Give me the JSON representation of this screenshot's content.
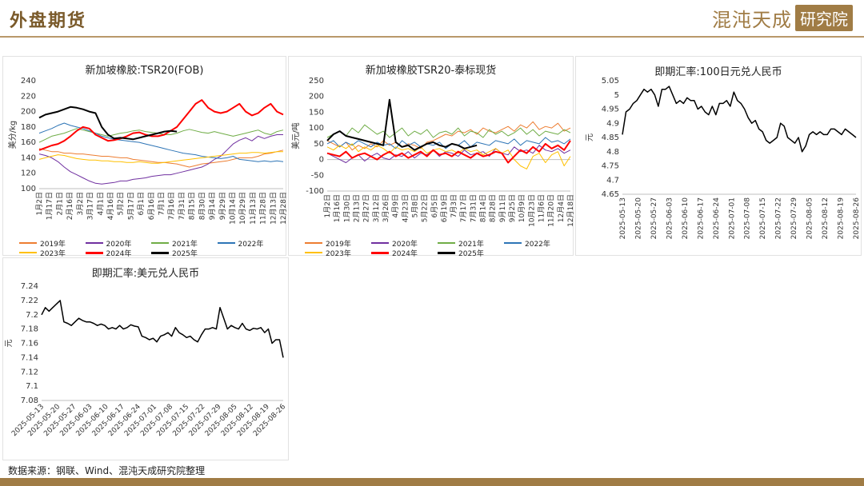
{
  "header": {
    "title": "外盘期货",
    "brand_main": "混沌天成",
    "brand_box": "研究院"
  },
  "source": "数据来源：钢联、Wind、混沌天成研究院整理",
  "colors": {
    "accent": "#a07c45"
  },
  "chart_data": [
    {
      "id": "c1",
      "type": "line",
      "title": "新加坡橡胶:TSR20(FOB)",
      "ylabel": "美分/kg",
      "ylim": [
        100,
        240
      ],
      "yticks": [
        100,
        120,
        140,
        160,
        180,
        200,
        220,
        240
      ],
      "x_ticks": [
        "1月2日",
        "1月17日",
        "2月1日",
        "2月16日",
        "3月2日",
        "3月17日",
        "4月1日",
        "4月16日",
        "5月2日",
        "5月17日",
        "6月1日",
        "6月16日",
        "7月1日",
        "7月16日",
        "7月31日",
        "8月15日",
        "8月30日",
        "9月14日",
        "9月29日",
        "10月14日",
        "10月29日",
        "11月13日",
        "11月28日",
        "12月13日",
        "12月28日"
      ],
      "series": [
        {
          "name": "2019年",
          "color": "#ed7d31",
          "width": 1,
          "values": [
            152,
            150,
            148,
            148,
            146,
            146,
            145,
            145,
            144,
            143,
            142,
            142,
            141,
            140,
            140,
            138,
            137,
            136,
            135,
            134,
            134,
            133,
            132,
            130,
            128,
            130,
            132,
            133,
            134,
            135,
            136,
            138,
            140,
            140,
            140,
            142,
            145,
            146,
            148,
            150
          ]
        },
        {
          "name": "2020年",
          "color": "#7030a0",
          "width": 1,
          "values": [
            145,
            143,
            140,
            135,
            128,
            122,
            118,
            114,
            110,
            107,
            106,
            107,
            108,
            110,
            110,
            112,
            113,
            114,
            116,
            117,
            118,
            118,
            120,
            122,
            124,
            126,
            128,
            132,
            138,
            142,
            150,
            158,
            163,
            166,
            162,
            168,
            165,
            168,
            170,
            170
          ]
        },
        {
          "name": "2021年",
          "color": "#70ad47",
          "width": 1,
          "values": [
            160,
            164,
            168,
            170,
            172,
            175,
            178,
            176,
            174,
            172,
            170,
            168,
            170,
            172,
            173,
            175,
            176,
            174,
            173,
            172,
            170,
            170,
            172,
            175,
            177,
            175,
            173,
            172,
            174,
            172,
            170,
            168,
            170,
            172,
            174,
            176,
            172,
            170,
            174,
            176
          ]
        },
        {
          "name": "2022年",
          "color": "#2e75b6",
          "width": 1,
          "values": [
            172,
            175,
            178,
            182,
            185,
            182,
            180,
            178,
            175,
            172,
            168,
            166,
            164,
            163,
            162,
            161,
            160,
            158,
            156,
            154,
            152,
            150,
            148,
            146,
            145,
            144,
            142,
            141,
            140,
            139,
            140,
            142,
            138,
            137,
            136,
            135,
            136,
            135,
            136,
            135
          ]
        },
        {
          "name": "2023年",
          "color": "#ffc000",
          "width": 1,
          "values": [
            138,
            140,
            142,
            144,
            143,
            141,
            139,
            138,
            137,
            137,
            136,
            136,
            135,
            135,
            134,
            134,
            135,
            134,
            133,
            133,
            134,
            135,
            136,
            137,
            138,
            139,
            140,
            141,
            142,
            143,
            144,
            145,
            146,
            146,
            147,
            147,
            146,
            147,
            148,
            148
          ]
        },
        {
          "name": "2024年",
          "color": "#ff0000",
          "width": 2,
          "values": [
            150,
            153,
            156,
            158,
            162,
            168,
            175,
            180,
            178,
            170,
            166,
            162,
            163,
            165,
            168,
            172,
            173,
            170,
            168,
            168,
            170,
            175,
            180,
            190,
            200,
            210,
            215,
            205,
            200,
            198,
            200,
            205,
            210,
            200,
            195,
            198,
            205,
            210,
            200,
            196
          ]
        },
        {
          "name": "2025年",
          "color": "#000000",
          "width": 2,
          "values": [
            192,
            196,
            198,
            200,
            203,
            206,
            205,
            203,
            200,
            198,
            180,
            170,
            165,
            166,
            165,
            164,
            166,
            168,
            170,
            172,
            174,
            175,
            174
          ]
        }
      ],
      "legend": [
        {
          "name": "2019年",
          "color": "#ed7d31",
          "width": 1
        },
        {
          "name": "2020年",
          "color": "#7030a0",
          "width": 1
        },
        {
          "name": "2021年",
          "color": "#70ad47",
          "width": 1
        },
        {
          "name": "2022年",
          "color": "#2e75b6",
          "width": 1
        },
        {
          "name": "2023年",
          "color": "#ffc000",
          "width": 1
        },
        {
          "name": "2024年",
          "color": "#ff0000",
          "width": 2
        },
        {
          "name": "2025年",
          "color": "#000000",
          "width": 2
        }
      ]
    },
    {
      "id": "c2",
      "type": "line",
      "title": "新加坡橡胶TSR20-泰标现货",
      "ylabel": "美元/吨",
      "ylim": [
        -100,
        250
      ],
      "yticks": [
        -100,
        -50,
        0,
        50,
        100,
        150,
        200,
        250
      ],
      "x_ticks": [
        "1月2日",
        "1月16日",
        "1月30日",
        "2月13日",
        "2月27日",
        "3月12日",
        "3月26日",
        "4月9日",
        "4月23日",
        "5月8日",
        "5月22日",
        "6月5日",
        "6月19日",
        "7月3日",
        "7月17日",
        "7月31日",
        "8月14日",
        "8月28日",
        "9月11日",
        "9月25日",
        "10月9日",
        "10月23日",
        "11月6日",
        "11月20日",
        "12月4日",
        "12月18日"
      ],
      "series": [
        {
          "name": "2019年",
          "color": "#ed7d31",
          "width": 1,
          "values": [
            60,
            50,
            40,
            55,
            30,
            45,
            35,
            50,
            40,
            60,
            45,
            55,
            40,
            50,
            45,
            35,
            55,
            60,
            70,
            80,
            75,
            90,
            85,
            95,
            80,
            100,
            90,
            85,
            95,
            105,
            90,
            110,
            100,
            120,
            95,
            105,
            100,
            115,
            90,
            100
          ]
        },
        {
          "name": "2020年",
          "color": "#7030a0",
          "width": 1,
          "values": [
            20,
            10,
            0,
            -10,
            5,
            15,
            -5,
            10,
            20,
            5,
            0,
            15,
            10,
            25,
            5,
            20,
            15,
            30,
            10,
            25,
            20,
            10,
            30,
            15,
            20,
            25,
            10,
            35,
            20,
            15,
            40,
            25,
            30,
            20,
            45,
            30,
            25,
            35,
            20,
            30
          ]
        },
        {
          "name": "2021年",
          "color": "#70ad47",
          "width": 1,
          "values": [
            70,
            80,
            90,
            75,
            100,
            85,
            110,
            95,
            80,
            90,
            70,
            85,
            100,
            75,
            90,
            80,
            95,
            70,
            85,
            90,
            80,
            100,
            75,
            90,
            85,
            70,
            95,
            80,
            90,
            75,
            85,
            100,
            80,
            95,
            75,
            90,
            85,
            80,
            95,
            85
          ]
        },
        {
          "name": "2022年",
          "color": "#2e75b6",
          "width": 1,
          "values": [
            50,
            60,
            40,
            55,
            45,
            60,
            50,
            40,
            55,
            45,
            50,
            35,
            60,
            45,
            55,
            40,
            50,
            45,
            55,
            35,
            50,
            45,
            60,
            40,
            55,
            50,
            45,
            60,
            55,
            50,
            65,
            45,
            60,
            55,
            50,
            70,
            55,
            60,
            50,
            65
          ]
        },
        {
          "name": "2023年",
          "color": "#ffc000",
          "width": 1,
          "values": [
            40,
            30,
            45,
            35,
            50,
            25,
            40,
            30,
            45,
            35,
            20,
            40,
            30,
            35,
            25,
            40,
            20,
            30,
            35,
            25,
            30,
            20,
            35,
            25,
            30,
            15,
            25,
            35,
            20,
            30,
            0,
            -20,
            -30,
            10,
            20,
            -10,
            15,
            25,
            -20,
            10
          ]
        },
        {
          "name": "2024年",
          "color": "#ff0000",
          "width": 2,
          "values": [
            20,
            15,
            10,
            25,
            5,
            15,
            20,
            10,
            0,
            15,
            25,
            10,
            20,
            5,
            15,
            25,
            10,
            30,
            15,
            20,
            10,
            25,
            15,
            5,
            20,
            10,
            15,
            25,
            20,
            -10,
            10,
            30,
            20,
            40,
            25,
            50,
            35,
            45,
            30,
            60
          ]
        },
        {
          "name": "2025年",
          "color": "#000000",
          "width": 2,
          "values": [
            60,
            80,
            90,
            75,
            70,
            65,
            60,
            55,
            50,
            45,
            190,
            55,
            40,
            45,
            30,
            40,
            50,
            55,
            45,
            40,
            50,
            45,
            35,
            40,
            45
          ]
        }
      ],
      "legend": [
        {
          "name": "2019年",
          "color": "#ed7d31",
          "width": 1
        },
        {
          "name": "2020年",
          "color": "#7030a0",
          "width": 1
        },
        {
          "name": "2021年",
          "color": "#70ad47",
          "width": 1
        },
        {
          "name": "2022年",
          "color": "#2e75b6",
          "width": 1
        },
        {
          "name": "2023年",
          "color": "#ffc000",
          "width": 1
        },
        {
          "name": "2024年",
          "color": "#ff0000",
          "width": 2
        },
        {
          "name": "2025年",
          "color": "#000000",
          "width": 2
        }
      ]
    },
    {
      "id": "c3",
      "type": "line",
      "title": "即期汇率:100日元兑人民币",
      "ylabel": "元",
      "ylim": [
        4.65,
        5.05
      ],
      "yticks": [
        4.65,
        4.7,
        4.75,
        4.8,
        4.85,
        4.9,
        4.95,
        5,
        5.05
      ],
      "x_ticks": [
        "2025-05-13",
        "2025-05-20",
        "2025-05-27",
        "2025-06-03",
        "2025-06-10",
        "2025-06-17",
        "2025-06-24",
        "2025-07-01",
        "2025-07-08",
        "2025-07-15",
        "2025-07-22",
        "2025-07-29",
        "2025-08-05",
        "2025-08-12",
        "2025-08-19",
        "2025-08-26"
      ],
      "series": [
        {
          "name": "",
          "color": "#000000",
          "width": 1.5,
          "values": [
            4.86,
            4.94,
            4.95,
            4.97,
            4.98,
            5.0,
            5.02,
            5.01,
            5.02,
            5.0,
            4.96,
            5.02,
            5.02,
            5.03,
            5.0,
            4.97,
            4.98,
            4.97,
            4.99,
            4.98,
            4.98,
            4.95,
            4.96,
            4.94,
            4.93,
            4.96,
            4.93,
            4.97,
            4.97,
            4.98,
            4.96,
            5.01,
            4.98,
            4.97,
            4.95,
            4.92,
            4.9,
            4.91,
            4.88,
            4.87,
            4.84,
            4.83,
            4.84,
            4.85,
            4.9,
            4.89,
            4.85,
            4.84,
            4.83,
            4.85,
            4.8,
            4.82,
            4.86,
            4.87,
            4.86,
            4.87,
            4.86,
            4.86,
            4.88,
            4.88,
            4.87,
            4.86,
            4.88,
            4.87,
            4.86,
            4.85
          ]
        }
      ]
    },
    {
      "id": "c4",
      "type": "line",
      "title": "即期汇率:美元兑人民币",
      "ylabel": "元",
      "ylim": [
        7.08,
        7.24
      ],
      "yticks": [
        7.08,
        7.1,
        7.12,
        7.14,
        7.16,
        7.18,
        7.2,
        7.22,
        7.24
      ],
      "x_ticks": [
        "2025-05-13",
        "2025-05-20",
        "2025-05-27",
        "2025-06-03",
        "2025-06-10",
        "2025-06-17",
        "2025-06-24",
        "2025-07-01",
        "2025-07-08",
        "2025-07-15",
        "2025-07-22",
        "2025-07-29",
        "2025-08-05",
        "2025-08-12",
        "2025-08-19",
        "2025-08-26"
      ],
      "series": [
        {
          "name": "",
          "color": "#000000",
          "width": 1.5,
          "values": [
            7.2,
            7.21,
            7.205,
            7.21,
            7.215,
            7.22,
            7.19,
            7.188,
            7.185,
            7.19,
            7.195,
            7.192,
            7.19,
            7.19,
            7.188,
            7.185,
            7.187,
            7.185,
            7.18,
            7.182,
            7.18,
            7.185,
            7.18,
            7.182,
            7.186,
            7.184,
            7.183,
            7.17,
            7.168,
            7.165,
            7.167,
            7.162,
            7.17,
            7.172,
            7.175,
            7.17,
            7.182,
            7.175,
            7.172,
            7.168,
            7.17,
            7.165,
            7.162,
            7.172,
            7.18,
            7.18,
            7.182,
            7.18,
            7.21,
            7.195,
            7.18,
            7.185,
            7.182,
            7.18,
            7.188,
            7.18,
            7.178,
            7.181,
            7.18,
            7.182,
            7.175,
            7.18,
            7.16,
            7.165,
            7.165,
            7.14
          ]
        }
      ]
    }
  ]
}
